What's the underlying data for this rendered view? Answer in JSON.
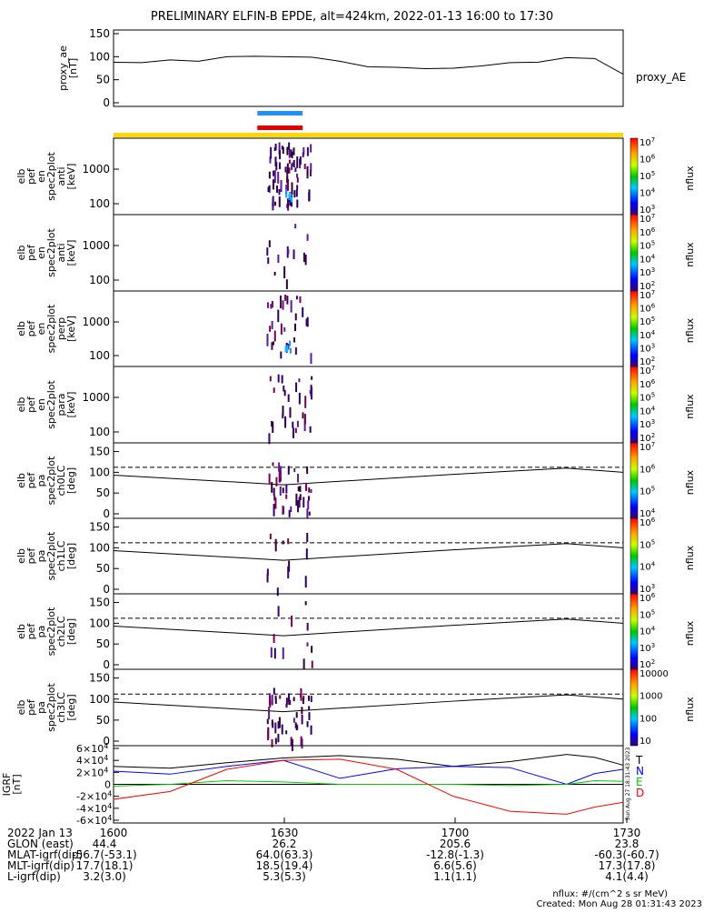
{
  "title": "PRELIMINARY ELFIN-B EPDE, alt=424km, 2022-01-13 16:00 to 17:30",
  "footer": {
    "units": "nflux: #/(cm^2 s sr MeV)",
    "created": "Created: Mon Aug 28 01:31:43 2023",
    "side_stamp": "Sun Aug 27 18:31:43 2023"
  },
  "orbit_table": {
    "row_labels": [
      "2022 Jan 13",
      "GLON (east)",
      "MLAT-igrf(dip)",
      "MLT-igrf(dip)",
      "L-igrf(dip)"
    ],
    "columns": [
      {
        "time": "1600",
        "values": [
          "44.4",
          "-56.7(-53.1)",
          "17.7(18.1)",
          "3.2(3.0)"
        ]
      },
      {
        "time": "1630",
        "values": [
          "26.2",
          "64.0(63.3)",
          "18.5(19.4)",
          "5.3(5.3)"
        ]
      },
      {
        "time": "1700",
        "values": [
          "205.6",
          "-12.8(-1.3)",
          "6.6(5.6)",
          "1.1(1.1)"
        ]
      },
      {
        "time": "1730",
        "values": [
          "23.8",
          "-60.3(-60.7)",
          "17.3(17.8)",
          "4.1(4.4)"
        ]
      }
    ]
  },
  "science_zone_bars": [
    {
      "color": "#1e90ff",
      "start_min": 27,
      "end_min": 35
    },
    {
      "color": "#e00000",
      "start_min": 27,
      "end_min": 35
    },
    {
      "color": "#ffd700",
      "start_min": 0,
      "end_min": 90
    }
  ],
  "chart_data": [
    {
      "type": "line",
      "ylabel": "proxy_ae [nT]",
      "ylim": [
        0,
        150
      ],
      "yticks": [
        "0",
        "50",
        "100",
        "150"
      ],
      "series": [
        {
          "name": "proxy_AE",
          "x": [
            0,
            5,
            10,
            15,
            20,
            25,
            30,
            35,
            40,
            45,
            50,
            55,
            60,
            65,
            70,
            75,
            80,
            85,
            90
          ],
          "values": [
            88,
            87,
            93,
            90,
            100,
            101,
            100,
            99,
            90,
            78,
            77,
            74,
            75,
            80,
            87,
            88,
            98,
            96,
            62
          ]
        }
      ]
    },
    {
      "type": "heatmap",
      "ylabel": "elb pef en spec2plot anti [keV]",
      "yscale": "log",
      "yticks": [
        "100",
        "1000"
      ],
      "colorbar_label": "nflux",
      "colorbar_ticks": [
        "10^3",
        "10^4",
        "10^5",
        "10^6",
        "10^7"
      ],
      "x_active_min": [
        27,
        35
      ]
    },
    {
      "type": "heatmap",
      "ylabel": "elb pef en spec2plot anti [keV]",
      "yscale": "log",
      "yticks": [
        "100",
        "1000"
      ],
      "colorbar_label": "nflux",
      "colorbar_ticks": [
        "10^2",
        "10^3",
        "10^4",
        "10^5",
        "10^6",
        "10^7"
      ],
      "x_active_min": [
        27,
        35
      ]
    },
    {
      "type": "heatmap",
      "ylabel": "elb pef en spec2plot perp [keV]",
      "yscale": "log",
      "yticks": [
        "100",
        "1000"
      ],
      "colorbar_label": "nflux",
      "colorbar_ticks": [
        "10^2",
        "10^3",
        "10^4",
        "10^5",
        "10^6",
        "10^7"
      ],
      "x_active_min": [
        27,
        35
      ]
    },
    {
      "type": "heatmap",
      "ylabel": "elb pef en spec2plot para [keV]",
      "yscale": "log",
      "yticks": [
        "100",
        "1000"
      ],
      "colorbar_label": "nflux",
      "colorbar_ticks": [
        "10^2",
        "10^3",
        "10^4",
        "10^5",
        "10^6",
        "10^7"
      ],
      "x_active_min": [
        27,
        35
      ]
    },
    {
      "type": "heatmap",
      "ylabel": "elb pef pa spec2plot ch0LC [deg]",
      "ylim": [
        0,
        180
      ],
      "yticks": [
        "0",
        "50",
        "100",
        "150"
      ],
      "colorbar_label": "nflux",
      "colorbar_ticks": [
        "10^4",
        "10^5",
        "10^6",
        "10^7"
      ],
      "loss_cone_dashed": 112,
      "loss_cone": [
        [
          0,
          93
        ],
        [
          30,
          70
        ],
        [
          60,
          95
        ],
        [
          80,
          110
        ],
        [
          90,
          100
        ]
      ],
      "x_active_min": [
        27,
        35
      ]
    },
    {
      "type": "heatmap",
      "ylabel": "elb pef pa spec2plot ch1LC [deg]",
      "ylim": [
        0,
        180
      ],
      "yticks": [
        "0",
        "50",
        "100",
        "150"
      ],
      "colorbar_label": "nflux",
      "colorbar_ticks": [
        "10^3",
        "10^4",
        "10^5",
        "10^6"
      ],
      "loss_cone_dashed": 112,
      "loss_cone": [
        [
          0,
          93
        ],
        [
          30,
          70
        ],
        [
          60,
          95
        ],
        [
          80,
          110
        ],
        [
          90,
          100
        ]
      ],
      "x_active_min": [
        27,
        35
      ]
    },
    {
      "type": "heatmap",
      "ylabel": "elb pef pa spec2plot ch2LC [deg]",
      "ylim": [
        0,
        180
      ],
      "yticks": [
        "0",
        "50",
        "100",
        "150"
      ],
      "colorbar_label": "nflux",
      "colorbar_ticks": [
        "10^2",
        "10^3",
        "10^4",
        "10^5",
        "10^6"
      ],
      "loss_cone_dashed": 112,
      "loss_cone": [
        [
          0,
          93
        ],
        [
          30,
          70
        ],
        [
          60,
          95
        ],
        [
          80,
          110
        ],
        [
          90,
          100
        ]
      ],
      "x_active_min": [
        27,
        35
      ]
    },
    {
      "type": "heatmap",
      "ylabel": "elb pef pa spec2plot ch3LC [deg]",
      "ylim": [
        0,
        180
      ],
      "yticks": [
        "0",
        "50",
        "100",
        "150"
      ],
      "colorbar_label": "nflux",
      "colorbar_ticks": [
        "10",
        "100",
        "1000",
        "10000"
      ],
      "loss_cone_dashed": 112,
      "loss_cone": [
        [
          0,
          93
        ],
        [
          30,
          70
        ],
        [
          60,
          95
        ],
        [
          80,
          110
        ],
        [
          90,
          100
        ]
      ],
      "x_active_min": [
        27,
        35
      ]
    },
    {
      "type": "line",
      "ylabel": "IGRF [nT]",
      "ylim": [
        -60000,
        60000
      ],
      "yticks": [
        "-6x10^4",
        "-4x10^4",
        "-2x10^4",
        "0",
        "2x10^4",
        "4x10^4",
        "6x10^4"
      ],
      "series": [
        {
          "name": "T",
          "color": "#000000",
          "x": [
            0,
            10,
            20,
            30,
            40,
            50,
            60,
            70,
            80,
            85,
            90
          ],
          "values": [
            30000,
            27000,
            36000,
            44000,
            48000,
            42000,
            30000,
            38000,
            50000,
            45000,
            32000
          ]
        },
        {
          "name": "N",
          "color": "#0000ff",
          "x": [
            0,
            10,
            20,
            30,
            40,
            50,
            60,
            70,
            80,
            85,
            90
          ],
          "values": [
            22000,
            17000,
            30000,
            40000,
            10000,
            26000,
            30000,
            28000,
            0,
            18000,
            25000
          ]
        },
        {
          "name": "E",
          "color": "#00cc00",
          "x": [
            0,
            10,
            20,
            30,
            40,
            50,
            60,
            70,
            80,
            85,
            90
          ],
          "values": [
            -3000,
            0,
            6000,
            4000,
            0,
            0,
            0,
            -2000,
            0,
            6000,
            5000
          ]
        },
        {
          "name": "D",
          "color": "#ff0000",
          "x": [
            0,
            10,
            20,
            30,
            40,
            50,
            60,
            70,
            80,
            85,
            90
          ],
          "values": [
            -25000,
            -12000,
            25000,
            40000,
            42000,
            25000,
            -20000,
            -45000,
            -50000,
            -38000,
            -30000
          ]
        }
      ]
    }
  ]
}
